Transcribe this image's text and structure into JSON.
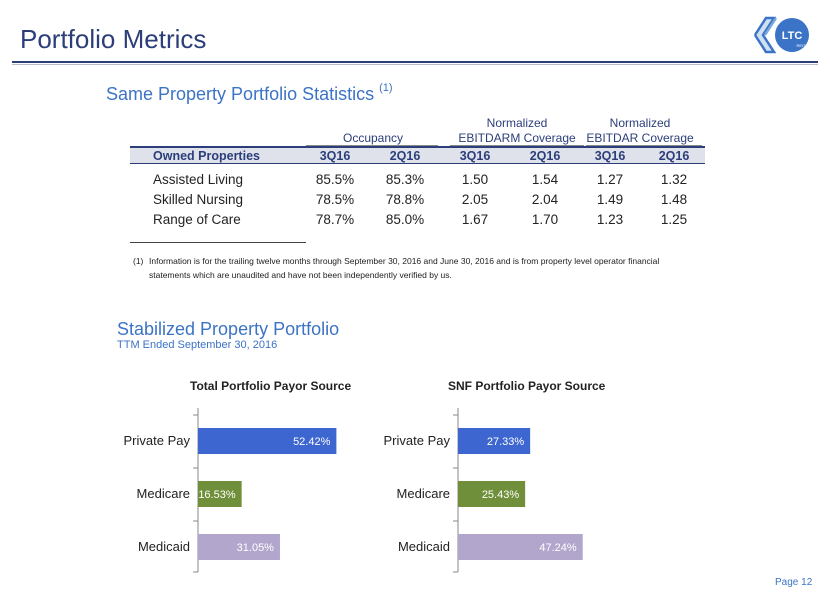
{
  "header": {
    "title": "Portfolio Metrics"
  },
  "logo": {
    "text": "LTC",
    "subtext": "REIT"
  },
  "stats_section": {
    "title": "Same Property Portfolio Statistics",
    "title_note": "(1)",
    "groups": [
      {
        "line1": "",
        "line2": "Occupancy"
      },
      {
        "line1": "Normalized",
        "line2": "EBITDARM Coverage"
      },
      {
        "line1": "Normalized",
        "line2": "EBITDAR Coverage"
      }
    ],
    "columns": [
      "Owned Properties",
      "3Q16",
      "2Q16",
      "3Q16",
      "2Q16",
      "3Q16",
      "2Q16"
    ],
    "rows": [
      [
        "Assisted Living",
        "85.5%",
        "85.3%",
        "1.50",
        "1.54",
        "1.27",
        "1.32"
      ],
      [
        "Skilled Nursing",
        "78.5%",
        "78.8%",
        "2.05",
        "2.04",
        "1.49",
        "1.48"
      ],
      [
        "Range of Care",
        "78.7%",
        "85.0%",
        "1.67",
        "1.70",
        "1.23",
        "1.25"
      ]
    ],
    "footnote_number": "(1)",
    "footnote_text": "Information is for the trailing twelve months through September 30, 2016 and June 30, 2016 and is from property level operator financial statements which are unaudited and have not been independently verified by us."
  },
  "stabilized_section": {
    "title": "Stabilized Property Portfolio",
    "subtitle": "TTM Ended September 30, 2016"
  },
  "chart_data": [
    {
      "type": "bar",
      "orientation": "horizontal",
      "title": "Total Portfolio Payor Source",
      "categories": [
        "Private Pay",
        "Medicare",
        "Medicaid"
      ],
      "values": [
        52.42,
        16.53,
        31.05
      ],
      "labels": [
        "52.42%",
        "16.53%",
        "31.05%"
      ],
      "colors": [
        "#3d66d1",
        "#6f8f3a",
        "#b3a6cc"
      ],
      "xlim": [
        0,
        60
      ]
    },
    {
      "type": "bar",
      "orientation": "horizontal",
      "title": "SNF Portfolio Payor Source",
      "categories": [
        "Private Pay",
        "Medicare",
        "Medicaid"
      ],
      "values": [
        27.33,
        25.43,
        47.24
      ],
      "labels": [
        "27.33%",
        "25.43%",
        "47.24%"
      ],
      "colors": [
        "#3d66d1",
        "#6f8f3a",
        "#b3a6cc"
      ],
      "xlim": [
        0,
        60
      ]
    }
  ],
  "footer": {
    "page": "Page 12"
  }
}
